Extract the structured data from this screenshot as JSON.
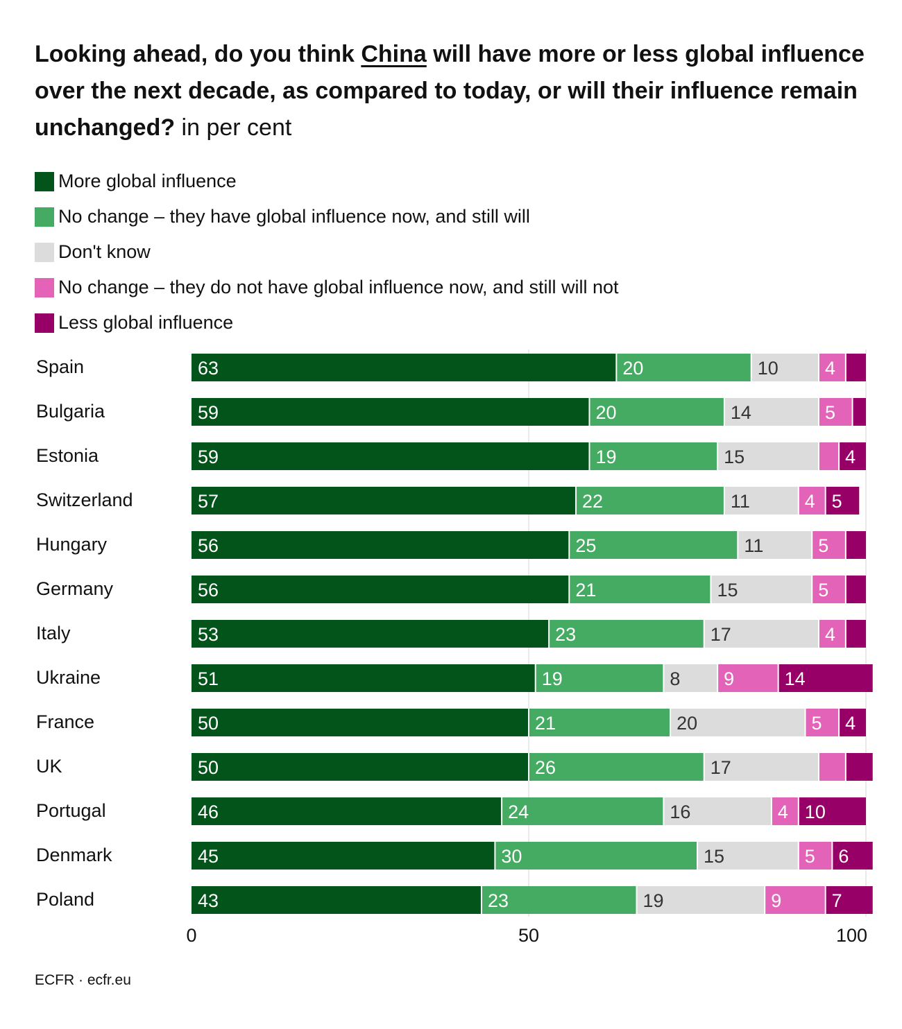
{
  "title": {
    "prefix": "Looking ahead, do you think ",
    "subject": "China",
    "suffix": " will have more or less global influence over the next decade, as compared to today, or will their influence remain unchanged?",
    "unit": " in per cent"
  },
  "source": "ECFR · ecfr.eu",
  "chart_data": {
    "type": "bar",
    "orientation": "horizontal",
    "stacked": true,
    "categories": [
      "Spain",
      "Bulgaria",
      "Estonia",
      "Switzerland",
      "Hungary",
      "Germany",
      "Italy",
      "Ukraine",
      "France",
      "UK",
      "Portugal",
      "Denmark",
      "Poland"
    ],
    "series": [
      {
        "name": "More global influence",
        "color": "#03541a",
        "label_color": "#ffffff",
        "values": [
          63,
          59,
          59,
          57,
          56,
          56,
          53,
          51,
          50,
          50,
          46,
          45,
          43
        ],
        "labels": [
          "63",
          "59",
          "59",
          "57",
          "56",
          "56",
          "53",
          "51",
          "50",
          "50",
          "46",
          "45",
          "43"
        ]
      },
      {
        "name": "No change – they have global influence now, and still will",
        "color": "#45aa62",
        "label_color": "#ffffff",
        "values": [
          20,
          20,
          19,
          22,
          25,
          21,
          23,
          19,
          21,
          26,
          24,
          30,
          23
        ],
        "labels": [
          "20",
          "20",
          "19",
          "22",
          "25",
          "21",
          "23",
          "19",
          "21",
          "26",
          "24",
          "30",
          "23"
        ]
      },
      {
        "name": "Don't know",
        "color": "#dcdcdc",
        "label_color": "#333333",
        "values": [
          10,
          14,
          15,
          11,
          11,
          15,
          17,
          8,
          20,
          17,
          16,
          15,
          19
        ],
        "labels": [
          "10",
          "14",
          "15",
          "11",
          "11",
          "15",
          "17",
          "8",
          "20",
          "17",
          "16",
          "15",
          "19"
        ]
      },
      {
        "name": "No change – they do not have global influence now, and still will not",
        "color": "#e263b8",
        "label_color": "#ffffff",
        "values": [
          4,
          5,
          3,
          4,
          5,
          5,
          4,
          9,
          5,
          4,
          4,
          5,
          9
        ],
        "labels": [
          "4",
          "5",
          "",
          "4",
          "5",
          "5",
          "4",
          "9",
          "5",
          "",
          "4",
          "5",
          "9"
        ]
      },
      {
        "name": "Less global influence",
        "color": "#970067",
        "label_color": "#ffffff",
        "values": [
          3,
          2,
          4,
          5,
          3,
          3,
          3,
          14,
          4,
          4,
          10,
          6,
          7
        ],
        "labels": [
          "",
          "",
          "4",
          "5",
          "",
          "",
          "",
          "14",
          "4",
          "",
          "10",
          "6",
          "7"
        ]
      }
    ],
    "xlim": [
      0,
      100
    ],
    "xticks": [
      "0",
      "50",
      "100"
    ],
    "grid": true
  }
}
